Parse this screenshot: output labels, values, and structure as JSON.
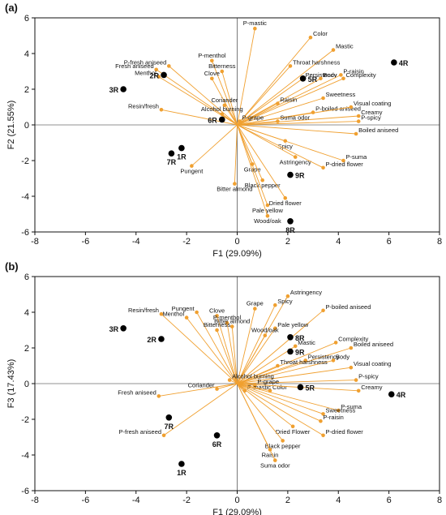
{
  "chart_data": [
    {
      "type": "scatter",
      "panel_label": "(a)",
      "xlabel": "F1 (29.09%)",
      "ylabel": "F2 (21.55%)",
      "xlim": [
        -8,
        8
      ],
      "ylim": [
        -6,
        6
      ],
      "xticks": [
        -8,
        -6,
        -4,
        -2,
        0,
        2,
        4,
        6,
        8
      ],
      "yticks": [
        -6,
        -4,
        -2,
        0,
        2,
        4,
        6
      ],
      "grid": false,
      "variables": [
        {
          "label": "P-mastic",
          "x": 0.7,
          "y": 5.4
        },
        {
          "label": "Color",
          "x": 2.9,
          "y": 4.9
        },
        {
          "label": "Mastic",
          "x": 3.8,
          "y": 4.2
        },
        {
          "label": "P-menthol",
          "x": -1.0,
          "y": 3.6
        },
        {
          "label": "P-fresh aniseed",
          "x": -2.7,
          "y": 3.3
        },
        {
          "label": "Fresh aniseed",
          "x": -3.2,
          "y": 3.1
        },
        {
          "label": "Throat harshness",
          "x": 2.1,
          "y": 3.3
        },
        {
          "label": "Bitterness",
          "x": -0.6,
          "y": 3.0
        },
        {
          "label": "Menthol",
          "x": -3.1,
          "y": 2.7
        },
        {
          "label": "Persistency",
          "x": 2.6,
          "y": 2.6
        },
        {
          "label": "Body",
          "x": 3.3,
          "y": 2.6
        },
        {
          "label": "P-raisin",
          "x": 4.1,
          "y": 2.8
        },
        {
          "label": "Complexity",
          "x": 4.2,
          "y": 2.6
        },
        {
          "label": "Clove",
          "x": -1.0,
          "y": 2.6
        },
        {
          "label": "Sweetness",
          "x": 3.4,
          "y": 1.5
        },
        {
          "label": "Coriander",
          "x": -0.5,
          "y": 1.1
        },
        {
          "label": "Raisin",
          "x": 1.6,
          "y": 1.2
        },
        {
          "label": "Resin/fresh",
          "x": -3.0,
          "y": 0.85
        },
        {
          "label": "Alcohol burning",
          "x": -0.6,
          "y": 0.6
        },
        {
          "label": "P-boiled aniseed",
          "x": 3.0,
          "y": 0.7
        },
        {
          "label": "Visual coating",
          "x": 4.5,
          "y": 1.0
        },
        {
          "label": "Creamy",
          "x": 4.8,
          "y": 0.5
        },
        {
          "label": "P-grape",
          "x": 0.1,
          "y": 0.2
        },
        {
          "label": "Suma odor",
          "x": 1.6,
          "y": 0.2
        },
        {
          "label": "P-spicy",
          "x": 4.8,
          "y": 0.2
        },
        {
          "label": "Boiled aniseed",
          "x": 4.7,
          "y": -0.5
        },
        {
          "label": "Spicy",
          "x": 1.9,
          "y": -0.9
        },
        {
          "label": "Astringency",
          "x": 2.3,
          "y": -1.8
        },
        {
          "label": "P-suma",
          "x": 4.2,
          "y": -2.0
        },
        {
          "label": "Pungent",
          "x": -1.8,
          "y": -2.3
        },
        {
          "label": "Grape",
          "x": 0.6,
          "y": -2.2
        },
        {
          "label": "P-dried flower",
          "x": 3.4,
          "y": -2.4
        },
        {
          "label": "Black pepper",
          "x": 1.0,
          "y": -3.1
        },
        {
          "label": "Bitter almond",
          "x": -0.1,
          "y": -3.3
        },
        {
          "label": "Dried flower",
          "x": 1.9,
          "y": -4.1
        },
        {
          "label": "Pale yellow",
          "x": 1.2,
          "y": -4.5
        },
        {
          "label": "Wood/oak",
          "x": 1.2,
          "y": -5.1
        }
      ],
      "samples": [
        {
          "label": "4R",
          "x": 6.2,
          "y": 3.5
        },
        {
          "label": "2R",
          "x": -2.9,
          "y": 2.8
        },
        {
          "label": "5R",
          "x": 2.6,
          "y": 2.6
        },
        {
          "label": "3R",
          "x": -4.5,
          "y": 2.0
        },
        {
          "label": "6R",
          "x": -0.6,
          "y": 0.3
        },
        {
          "label": "1R",
          "x": -2.2,
          "y": -1.3
        },
        {
          "label": "7R",
          "x": -2.6,
          "y": -1.6
        },
        {
          "label": "9R",
          "x": 2.1,
          "y": -2.8
        },
        {
          "label": "8R",
          "x": 2.1,
          "y": -5.4
        }
      ]
    },
    {
      "type": "scatter",
      "panel_label": "(b)",
      "xlabel": "F1 (29.09%)",
      "ylabel": "F3 (17.43%)",
      "xlim": [
        -8,
        8
      ],
      "ylim": [
        -6,
        6
      ],
      "xticks": [
        -8,
        -6,
        -4,
        -2,
        0,
        2,
        4,
        6,
        8
      ],
      "yticks": [
        -6,
        -4,
        -2,
        0,
        2,
        4,
        6
      ],
      "grid": false,
      "variables": [
        {
          "label": "Astringency",
          "x": 2.0,
          "y": 4.9
        },
        {
          "label": "Spicy",
          "x": 1.5,
          "y": 4.4
        },
        {
          "label": "Grape",
          "x": 0.7,
          "y": 4.2
        },
        {
          "label": "P-boiled aniseed",
          "x": 3.4,
          "y": 4.1
        },
        {
          "label": "Pungent",
          "x": -1.6,
          "y": 4.0
        },
        {
          "label": "Clove",
          "x": -0.8,
          "y": 3.8
        },
        {
          "label": "Resin/fresh",
          "x": -3.0,
          "y": 3.9
        },
        {
          "label": "P-menthol",
          "x": -0.4,
          "y": 3.4
        },
        {
          "label": "Menthol",
          "x": -2.0,
          "y": 3.7
        },
        {
          "label": "Bitter almond",
          "x": -0.2,
          "y": 3.2
        },
        {
          "label": "Pale yellow",
          "x": 1.5,
          "y": 3.1
        },
        {
          "label": "Bitterness",
          "x": -0.8,
          "y": 3.0
        },
        {
          "label": "Wood/oak",
          "x": 1.1,
          "y": 2.7
        },
        {
          "label": "Complexity",
          "x": 3.9,
          "y": 2.3
        },
        {
          "label": "Mastic",
          "x": 2.3,
          "y": 2.1
        },
        {
          "label": "Boiled aniseed",
          "x": 4.5,
          "y": 2.0
        },
        {
          "label": "Persistency",
          "x": 2.7,
          "y": 1.3
        },
        {
          "label": "Body",
          "x": 3.8,
          "y": 1.3
        },
        {
          "label": "Throat harshness",
          "x": 1.6,
          "y": 1.0
        },
        {
          "label": "Visual coating",
          "x": 4.5,
          "y": 0.9
        },
        {
          "label": "Alcohol burning",
          "x": -0.3,
          "y": 0.2
        },
        {
          "label": "P-spicy",
          "x": 4.7,
          "y": 0.2
        },
        {
          "label": "P-grape",
          "x": 0.7,
          "y": -0.1
        },
        {
          "label": "Coriander",
          "x": -0.8,
          "y": -0.3
        },
        {
          "label": "P-mastic",
          "x": 0.3,
          "y": -0.4
        },
        {
          "label": "Color",
          "x": 1.3,
          "y": -0.4
        },
        {
          "label": "Creamy",
          "x": 4.8,
          "y": -0.4
        },
        {
          "label": "Fresh aniseed",
          "x": -3.1,
          "y": -0.7
        },
        {
          "label": "P-suma",
          "x": 4.0,
          "y": -1.5
        },
        {
          "label": "Sweetness",
          "x": 3.4,
          "y": -1.7
        },
        {
          "label": "P-raisin",
          "x": 3.3,
          "y": -2.1
        },
        {
          "label": "Dried Flower",
          "x": 2.2,
          "y": -2.4
        },
        {
          "label": "P-fresh aniseed",
          "x": -2.9,
          "y": -2.9
        },
        {
          "label": "P-dried flower",
          "x": 3.4,
          "y": -2.9
        },
        {
          "label": "Black pepper",
          "x": 1.8,
          "y": -3.2
        },
        {
          "label": "Raisin",
          "x": 1.3,
          "y": -3.7
        },
        {
          "label": "Suma odor",
          "x": 1.5,
          "y": -4.3
        }
      ],
      "samples": [
        {
          "label": "3R",
          "x": -4.5,
          "y": 3.1
        },
        {
          "label": "2R",
          "x": -3.0,
          "y": 2.5
        },
        {
          "label": "8R",
          "x": 2.1,
          "y": 2.6
        },
        {
          "label": "9R",
          "x": 2.1,
          "y": 1.8
        },
        {
          "label": "5R",
          "x": 2.5,
          "y": -0.2
        },
        {
          "label": "4R",
          "x": 6.1,
          "y": -0.6
        },
        {
          "label": "7R",
          "x": -2.7,
          "y": -1.9
        },
        {
          "label": "6R",
          "x": -0.8,
          "y": -2.9
        },
        {
          "label": "1R",
          "x": -2.2,
          "y": -4.5
        }
      ]
    }
  ]
}
